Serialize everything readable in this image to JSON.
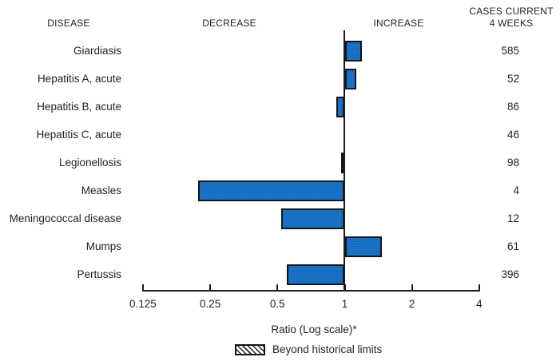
{
  "headers": {
    "disease": "DISEASE",
    "decrease": "DECREASE",
    "increase": "INCREASE",
    "cases_line1": "CASES CURRENT",
    "cases_line2": "4 WEEKS"
  },
  "chart_data": {
    "type": "bar",
    "orientation": "horizontal",
    "x_scale": "log2",
    "xlabel": "Ratio (Log scale)*",
    "x_ticks": [
      "0.125",
      "0.25",
      "0.5",
      "1",
      "2",
      "4"
    ],
    "x_range": [
      0.125,
      4
    ],
    "baseline": 1,
    "legend": {
      "label": "Beyond historical limits",
      "swatch": "hatched"
    },
    "rows": [
      {
        "disease": "Giardiasis",
        "ratio": 1.19,
        "cases": "585",
        "beyond_limits": false
      },
      {
        "disease": "Hepatitis A, acute",
        "ratio": 1.13,
        "cases": "52",
        "beyond_limits": false
      },
      {
        "disease": "Hepatitis B, acute",
        "ratio": 0.92,
        "cases": "86",
        "beyond_limits": false
      },
      {
        "disease": "Hepatitis C, acute",
        "ratio": 1.0,
        "cases": "46",
        "beyond_limits": false
      },
      {
        "disease": "Legionellosis",
        "ratio": 0.96,
        "cases": "98",
        "beyond_limits": false
      },
      {
        "disease": "Measles",
        "ratio": 0.22,
        "cases": "4",
        "beyond_limits": false
      },
      {
        "disease": "Meningococcal disease",
        "ratio": 0.52,
        "cases": "12",
        "beyond_limits": false
      },
      {
        "disease": "Mumps",
        "ratio": 1.47,
        "cases": "61",
        "beyond_limits": false
      },
      {
        "disease": "Pertussis",
        "ratio": 0.55,
        "cases": "396",
        "beyond_limits": false
      }
    ],
    "colors": {
      "bar_fill": "#1973c8",
      "bar_border": "#151515",
      "axis": "#1a1a1a",
      "text": "#231f20"
    }
  }
}
